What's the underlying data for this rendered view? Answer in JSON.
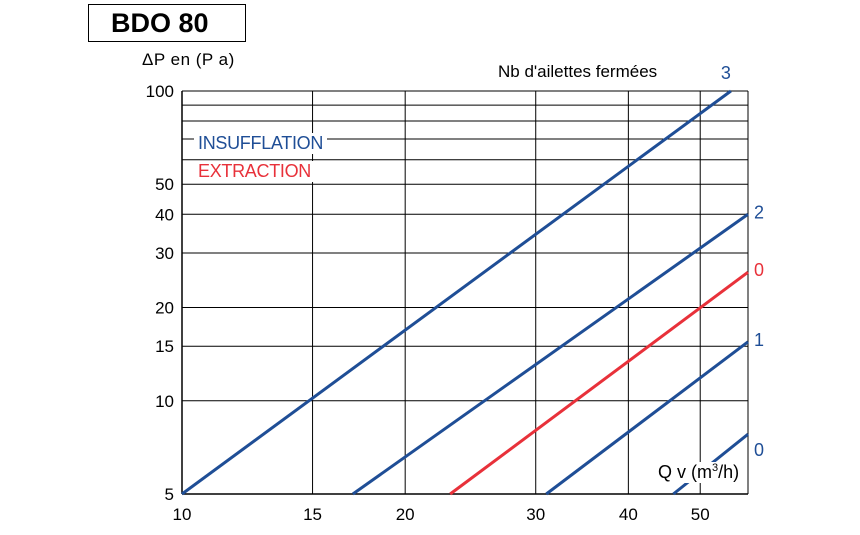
{
  "title": "BDO 80",
  "ylabel": "ΔP en (P a)",
  "legend_header": "Nb d'ailettes fermées",
  "xunit": {
    "prefix": "Q v (m",
    "sup": "3",
    "suffix": "/h)"
  },
  "legend_items": [
    {
      "label": "INSUFFLATION",
      "color": "#1f4e96"
    },
    {
      "label": "EXTRACTION",
      "color": "#e8313a"
    }
  ],
  "colors": {
    "insufflation": "#1f4e96",
    "extraction": "#e8313a",
    "grid": "#000000"
  },
  "chart_data": {
    "type": "line",
    "title": "BDO 80",
    "xlabel": "Q v (m3/h)",
    "ylabel": "ΔP en (P a)",
    "x_scale": "log",
    "y_scale": "log",
    "xlim": [
      10,
      58
    ],
    "ylim": [
      5,
      100
    ],
    "x_ticks": [
      10,
      15,
      20,
      30,
      40,
      50
    ],
    "y_ticks": [
      5,
      10,
      15,
      20,
      30,
      40,
      50,
      100
    ],
    "x_gridlines": [
      10,
      15,
      20,
      30,
      40,
      50
    ],
    "y_gridlines": [
      5,
      10,
      15,
      20,
      30,
      40,
      50,
      60,
      70,
      80,
      90,
      100
    ],
    "grid": true,
    "legend_title": "Nb d'ailettes fermées",
    "series": [
      {
        "name": "3",
        "mode": "INSUFFLATION",
        "x": [
          10,
          55
        ],
        "y": [
          5,
          100
        ]
      },
      {
        "name": "2",
        "mode": "INSUFFLATION",
        "x": [
          17,
          58
        ],
        "y": [
          5,
          40
        ]
      },
      {
        "name": "0",
        "mode": "EXTRACTION",
        "x": [
          23,
          58
        ],
        "y": [
          5,
          26
        ]
      },
      {
        "name": "1",
        "mode": "INSUFFLATION",
        "x": [
          31,
          58
        ],
        "y": [
          5,
          15.5
        ]
      },
      {
        "name": "0",
        "mode": "INSUFFLATION",
        "x": [
          46,
          58
        ],
        "y": [
          5,
          7.8
        ]
      }
    ]
  }
}
